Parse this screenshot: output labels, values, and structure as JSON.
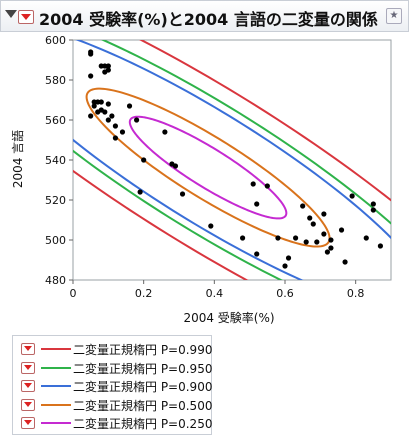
{
  "window": {
    "title": "2004 受験率(%)と2004 言語の二変量の関係",
    "star_icon": "star-icon"
  },
  "chart_data": {
    "type": "scatter",
    "xlabel": "2004 受験率(%)",
    "ylabel": "2004 言語",
    "xlim": [
      0,
      0.9
    ],
    "ylim": [
      480,
      600
    ],
    "xticks": [
      0,
      0.2,
      0.4,
      0.6,
      0.8
    ],
    "xtick_labels": [
      "0",
      "0.2",
      "0.4",
      "0.6",
      "0.8"
    ],
    "yticks": [
      480,
      500,
      520,
      540,
      560,
      580,
      600
    ],
    "ytick_labels": [
      "480",
      "500",
      "520",
      "540",
      "560",
      "580",
      "600"
    ],
    "grid": false,
    "points": [
      [
        0.05,
        593
      ],
      [
        0.05,
        594
      ],
      [
        0.05,
        582
      ],
      [
        0.05,
        562
      ],
      [
        0.06,
        569
      ],
      [
        0.06,
        567
      ],
      [
        0.07,
        569
      ],
      [
        0.07,
        564
      ],
      [
        0.08,
        587
      ],
      [
        0.08,
        569
      ],
      [
        0.08,
        565
      ],
      [
        0.09,
        587
      ],
      [
        0.09,
        564
      ],
      [
        0.09,
        584
      ],
      [
        0.1,
        585
      ],
      [
        0.1,
        587
      ],
      [
        0.1,
        568
      ],
      [
        0.1,
        560
      ],
      [
        0.11,
        562
      ],
      [
        0.12,
        557
      ],
      [
        0.12,
        551
      ],
      [
        0.14,
        554
      ],
      [
        0.16,
        567
      ],
      [
        0.18,
        560
      ],
      [
        0.19,
        524
      ],
      [
        0.2,
        540
      ],
      [
        0.26,
        554
      ],
      [
        0.28,
        538
      ],
      [
        0.29,
        537
      ],
      [
        0.31,
        523
      ],
      [
        0.39,
        507
      ],
      [
        0.48,
        501
      ],
      [
        0.51,
        528
      ],
      [
        0.52,
        493
      ],
      [
        0.52,
        518
      ],
      [
        0.55,
        527
      ],
      [
        0.58,
        501
      ],
      [
        0.6,
        487
      ],
      [
        0.61,
        491
      ],
      [
        0.63,
        501
      ],
      [
        0.65,
        517
      ],
      [
        0.66,
        499
      ],
      [
        0.67,
        511
      ],
      [
        0.68,
        508
      ],
      [
        0.69,
        499
      ],
      [
        0.71,
        513
      ],
      [
        0.71,
        503
      ],
      [
        0.72,
        494
      ],
      [
        0.73,
        496
      ],
      [
        0.73,
        500
      ],
      [
        0.76,
        505
      ],
      [
        0.77,
        489
      ],
      [
        0.79,
        522
      ],
      [
        0.83,
        501
      ],
      [
        0.85,
        518
      ],
      [
        0.85,
        515
      ],
      [
        0.87,
        497
      ]
    ],
    "ellipses": [
      {
        "name": "二変量正規楕円 P=0.990",
        "color": "#d9363e"
      },
      {
        "name": "二変量正規楕円 P=0.950",
        "color": "#2fb34a"
      },
      {
        "name": "二変量正規楕円 P=0.900",
        "color": "#3a6fd8"
      },
      {
        "name": "二変量正規楕円 P=0.500",
        "color": "#d9731c"
      },
      {
        "name": "二変量正規楕円 P=0.250",
        "color": "#c52ad1"
      }
    ]
  }
}
